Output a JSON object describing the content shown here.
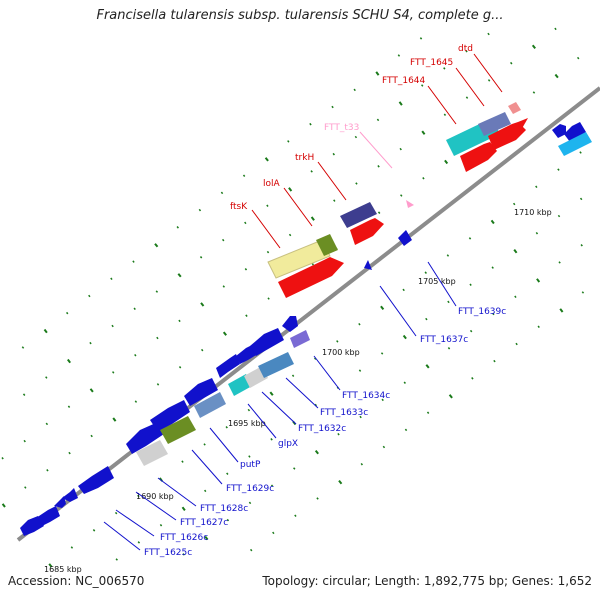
{
  "title": "Francisella tularensis subsp. tularensis SCHU S4, complete g...",
  "footer": {
    "accession": "Accession: NC_006570",
    "info": "Topology: circular; Length: 1,892,775 bp; Genes: 1,652"
  },
  "colors": {
    "backbone": "#8c8c8c",
    "forward_gene_label": "#d40000",
    "rna_label": "#ff8cc0",
    "reverse_gene_label": "#1111cc",
    "tick": "#1a7a1a"
  },
  "position_ticks": [
    "1685 kbp",
    "1690 kbp",
    "1695 kbp",
    "1700 kbp",
    "1705 kbp",
    "1710 kbp"
  ],
  "forward_labels": [
    "ftsK",
    "lolA",
    "trkH",
    "FTT_t33",
    "FTT_1644",
    "FTT_1645",
    "dtd"
  ],
  "reverse_labels": [
    "FTT_1625c",
    "FTT_1626c",
    "FTT_1627c",
    "FTT_1628c",
    "FTT_1629c",
    "putP",
    "glpX",
    "FTT_1632c",
    "FTT_1633c",
    "FTT_1634c",
    "FTT_1637c",
    "FTT_1639c"
  ]
}
